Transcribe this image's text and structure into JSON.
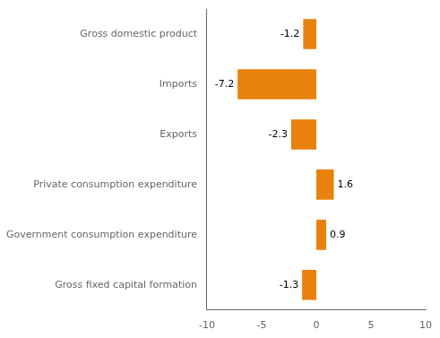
{
  "chart_data": {
    "type": "bar",
    "orientation": "horizontal",
    "categories": [
      "Gross fixed capital formation",
      "Government consumption expenditure",
      "Private consumption expenditure",
      "Exports",
      "Imports",
      "Gross domestic product"
    ],
    "values": [
      -1.3,
      0.9,
      1.6,
      -2.3,
      -7.2,
      -1.2
    ],
    "color": "#E8820C",
    "xlim": [
      -10,
      10
    ],
    "xticks": [
      -10,
      -5,
      0,
      5,
      10
    ],
    "grid": false,
    "data_labels": true
  }
}
